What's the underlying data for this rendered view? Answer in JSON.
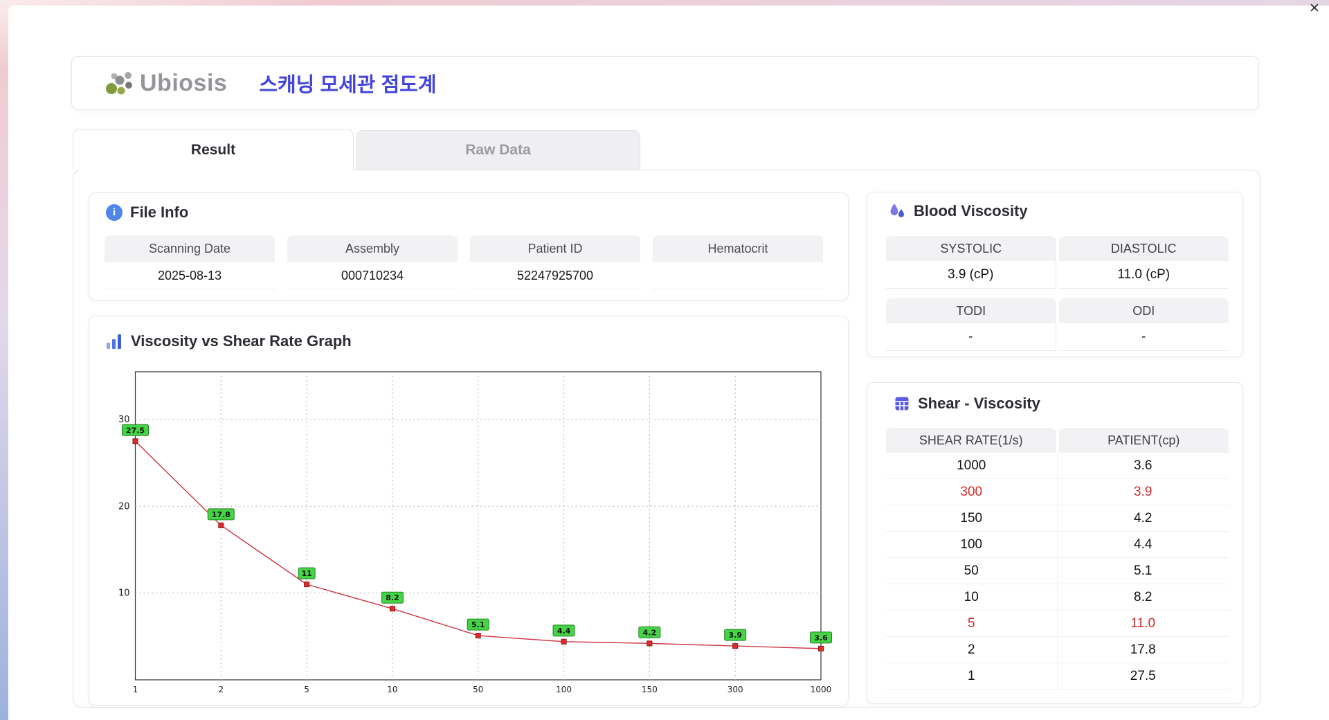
{
  "window": {
    "close_label": "✕"
  },
  "icons": {
    "info": "i"
  },
  "header": {
    "logo": "Ubiosis",
    "title": "스캐닝 모세관 점도계"
  },
  "tabs": {
    "result": "Result",
    "raw_data": "Raw Data"
  },
  "file_info": {
    "title": "File Info",
    "fields": [
      {
        "label": "Scanning Date",
        "value": "2025-08-13"
      },
      {
        "label": "Assembly",
        "value": "000710234"
      },
      {
        "label": "Patient ID",
        "value": "52247925700"
      },
      {
        "label": "Hematocrit",
        "value": ""
      }
    ]
  },
  "blood_viscosity": {
    "title": "Blood Viscosity",
    "cells": [
      {
        "label": "SYSTOLIC",
        "value": "3.9 (cP)"
      },
      {
        "label": "DIASTOLIC",
        "value": "11.0 (cP)"
      },
      {
        "label": "TODI",
        "value": "-"
      },
      {
        "label": "ODI",
        "value": "-"
      }
    ]
  },
  "shear_table": {
    "title": "Shear - Viscosity",
    "columns": [
      "SHEAR RATE(1/s)",
      "PATIENT(cp)"
    ],
    "rows": [
      {
        "rate": "1000",
        "value": "3.6",
        "highlight": false
      },
      {
        "rate": "300",
        "value": "3.9",
        "highlight": true
      },
      {
        "rate": "150",
        "value": "4.2",
        "highlight": false
      },
      {
        "rate": "100",
        "value": "4.4",
        "highlight": false
      },
      {
        "rate": "50",
        "value": "5.1",
        "highlight": false
      },
      {
        "rate": "10",
        "value": "8.2",
        "highlight": false
      },
      {
        "rate": "5",
        "value": "11.0",
        "highlight": true
      },
      {
        "rate": "2",
        "value": "17.8",
        "highlight": false
      },
      {
        "rate": "1",
        "value": "27.5",
        "highlight": false
      }
    ]
  },
  "chart_data": {
    "type": "line",
    "title": "Viscosity vs Shear Rate Graph",
    "x_ticks": [
      "1",
      "2",
      "5",
      "10",
      "50",
      "100",
      "150",
      "300",
      "1000"
    ],
    "values": [
      27.5,
      17.8,
      11,
      8.2,
      5.1,
      4.4,
      4.2,
      3.9,
      3.6
    ],
    "point_labels": [
      "27.5",
      "17.8",
      "11",
      "8.2",
      "5.1",
      "4.4",
      "4.2",
      "3.9",
      "3.6"
    ],
    "y_ticks": [
      10,
      20,
      30
    ],
    "ylim": [
      0,
      35.5
    ],
    "xlabel": "",
    "ylabel": "",
    "grid": true,
    "legend": "none",
    "line_color": "#cc3340",
    "marker_color": "#e02c2c",
    "marker_border": "#8f1515",
    "label_bg": "#46d446",
    "label_border": "#238023",
    "grid_color": "#b0b0b0",
    "axis_color": "#333333"
  }
}
